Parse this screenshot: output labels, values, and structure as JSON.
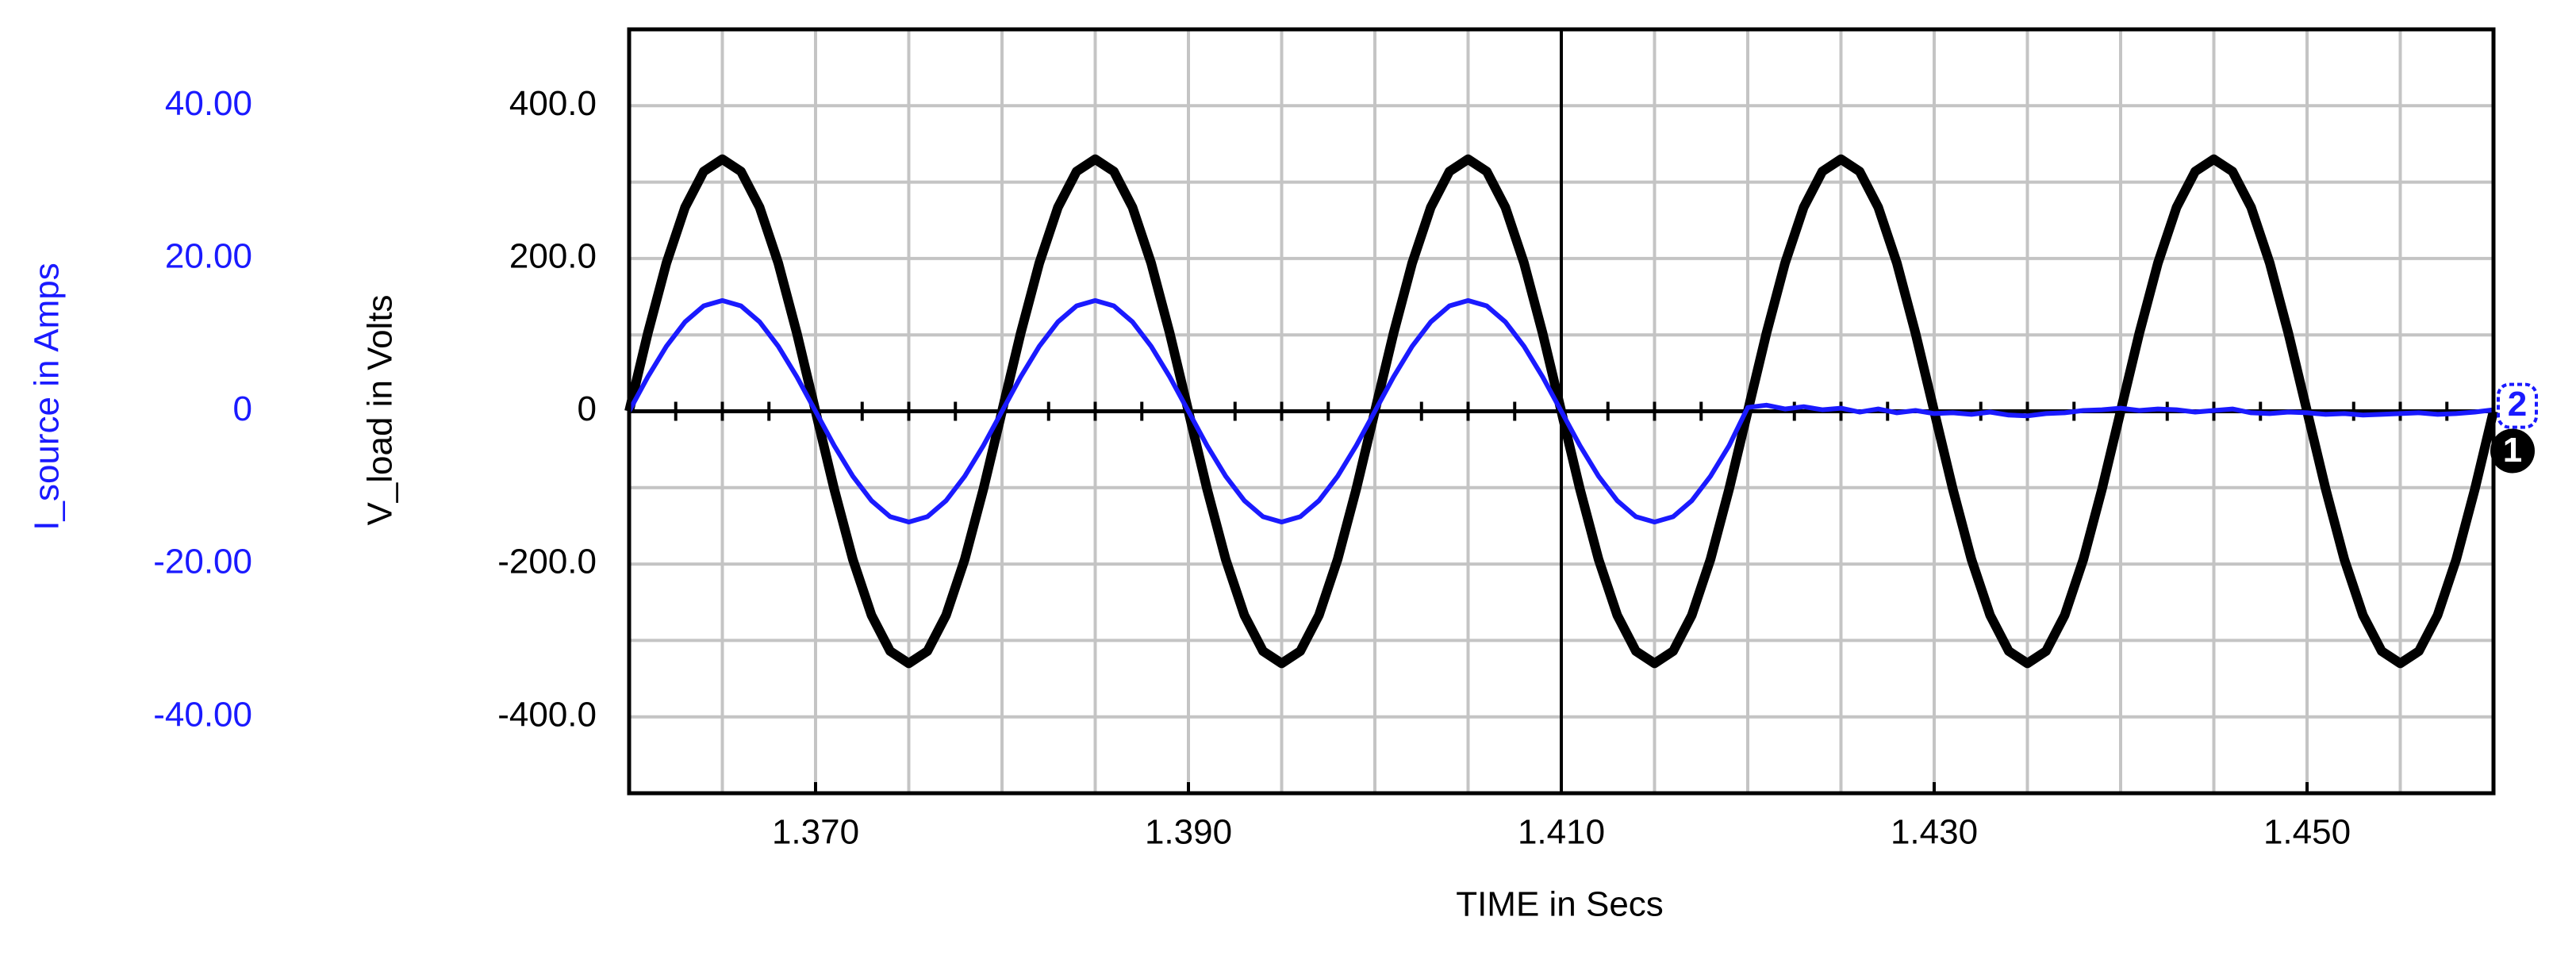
{
  "chart_data": {
    "type": "line",
    "x_label": "TIME in Secs",
    "y_label": "V_load in Volts",
    "y2_label": "I_source in Amps",
    "xlim": [
      1.36,
      1.46
    ],
    "xticks": [
      {
        "value": 1.37,
        "label": "1.370"
      },
      {
        "value": 1.39,
        "label": "1.390"
      },
      {
        "value": 1.41,
        "label": "1.410"
      },
      {
        "value": 1.43,
        "label": "1.430"
      },
      {
        "value": 1.45,
        "label": "1.450"
      }
    ],
    "xgrid": [
      1.365,
      1.37,
      1.375,
      1.38,
      1.385,
      1.39,
      1.395,
      1.4,
      1.405,
      1.41,
      1.415,
      1.42,
      1.425,
      1.43,
      1.435,
      1.44,
      1.445,
      1.45,
      1.455
    ],
    "ylim": [
      -500,
      500
    ],
    "yticks": [
      {
        "value": 400,
        "label": "400.0"
      },
      {
        "value": 200,
        "label": "200.0"
      },
      0,
      {
        "value": -200,
        "label": "-200.0"
      },
      {
        "value": -400,
        "label": "-400.0"
      }
    ],
    "ygrid": [
      -400,
      -300,
      -200,
      -100,
      100,
      200,
      300,
      400
    ],
    "y2lim": [
      -50,
      50
    ],
    "y2ticks": [
      {
        "value": 40,
        "label": "40.00"
      },
      {
        "value": 20,
        "label": "20.00"
      },
      0,
      {
        "value": -20,
        "label": "-20.00"
      },
      {
        "value": -40,
        "label": "-40.00"
      }
    ],
    "grid": true,
    "cursor": 1.41,
    "x": [
      1.36,
      1.361,
      1.362,
      1.363,
      1.364,
      1.365,
      1.366,
      1.367,
      1.368,
      1.369,
      1.37,
      1.371,
      1.372,
      1.373,
      1.374,
      1.375,
      1.376,
      1.377,
      1.378,
      1.379,
      1.38,
      1.381,
      1.382,
      1.383,
      1.384,
      1.385,
      1.386,
      1.387,
      1.388,
      1.389,
      1.39,
      1.391,
      1.392,
      1.393,
      1.394,
      1.395,
      1.396,
      1.397,
      1.398,
      1.399,
      1.4,
      1.401,
      1.402,
      1.403,
      1.404,
      1.405,
      1.406,
      1.407,
      1.408,
      1.409,
      1.41,
      1.411,
      1.412,
      1.413,
      1.414,
      1.415,
      1.416,
      1.417,
      1.418,
      1.419,
      1.42,
      1.421,
      1.422,
      1.423,
      1.424,
      1.425,
      1.426,
      1.427,
      1.428,
      1.429,
      1.43,
      1.431,
      1.432,
      1.433,
      1.434,
      1.435,
      1.436,
      1.437,
      1.438,
      1.439,
      1.44,
      1.441,
      1.442,
      1.443,
      1.444,
      1.445,
      1.446,
      1.447,
      1.448,
      1.449,
      1.45,
      1.451,
      1.452,
      1.453,
      1.454,
      1.455,
      1.456,
      1.457,
      1.458,
      1.459,
      1.46
    ],
    "series": [
      {
        "name": "V_load",
        "marker": "1",
        "color": "#000000",
        "axis": "y",
        "values": [
          0,
          102,
          194,
          267,
          314,
          330,
          314,
          267,
          194,
          102,
          0,
          -102,
          -194,
          -267,
          -314,
          -330,
          -314,
          -267,
          -194,
          -102,
          0,
          102,
          194,
          267,
          314,
          330,
          314,
          267,
          194,
          102,
          0,
          -102,
          -194,
          -267,
          -314,
          -330,
          -314,
          -267,
          -194,
          -102,
          0,
          102,
          194,
          267,
          314,
          330,
          314,
          267,
          194,
          102,
          0,
          -102,
          -194,
          -267,
          -314,
          -330,
          -314,
          -267,
          -194,
          -102,
          0,
          102,
          194,
          267,
          314,
          330,
          314,
          267,
          194,
          102,
          0,
          -102,
          -194,
          -267,
          -314,
          -330,
          -314,
          -267,
          -194,
          -102,
          0,
          102,
          194,
          267,
          314,
          330,
          314,
          267,
          194,
          102,
          0,
          -102,
          -194,
          -267,
          -314,
          -330,
          -314,
          -267,
          -194,
          -102,
          0
        ]
      },
      {
        "name": "I_source",
        "marker": "2",
        "color": "#1a1aff",
        "axis": "y2",
        "values": [
          0,
          4.5,
          8.5,
          11.7,
          13.8,
          14.5,
          13.8,
          11.7,
          8.5,
          4.5,
          0,
          -4.5,
          -8.5,
          -11.7,
          -13.8,
          -14.5,
          -13.8,
          -11.7,
          -8.5,
          -4.5,
          0,
          4.5,
          8.5,
          11.7,
          13.8,
          14.5,
          13.8,
          11.7,
          8.5,
          4.5,
          0,
          -4.5,
          -8.5,
          -11.7,
          -13.8,
          -14.5,
          -13.8,
          -11.7,
          -8.5,
          -4.5,
          0,
          4.5,
          8.5,
          11.7,
          13.8,
          14.5,
          13.8,
          11.7,
          8.5,
          4.5,
          0,
          -4.5,
          -8.5,
          -11.7,
          -13.8,
          -14.5,
          -13.8,
          -11.7,
          -8.5,
          -4.5,
          0.5,
          0.8,
          0.3,
          0.6,
          0.2,
          0.4,
          -0.1,
          0.3,
          -0.2,
          0.1,
          -0.3,
          -0.2,
          -0.4,
          -0.1,
          -0.5,
          -0.6,
          -0.3,
          -0.2,
          0.1,
          0.2,
          0.4,
          0.1,
          0.3,
          0.2,
          -0.1,
          0.1,
          0.3,
          -0.2,
          -0.3,
          -0.1,
          -0.2,
          -0.4,
          -0.3,
          -0.5,
          -0.4,
          -0.3,
          -0.2,
          -0.4,
          -0.3,
          -0.1,
          0.2
        ]
      }
    ]
  }
}
